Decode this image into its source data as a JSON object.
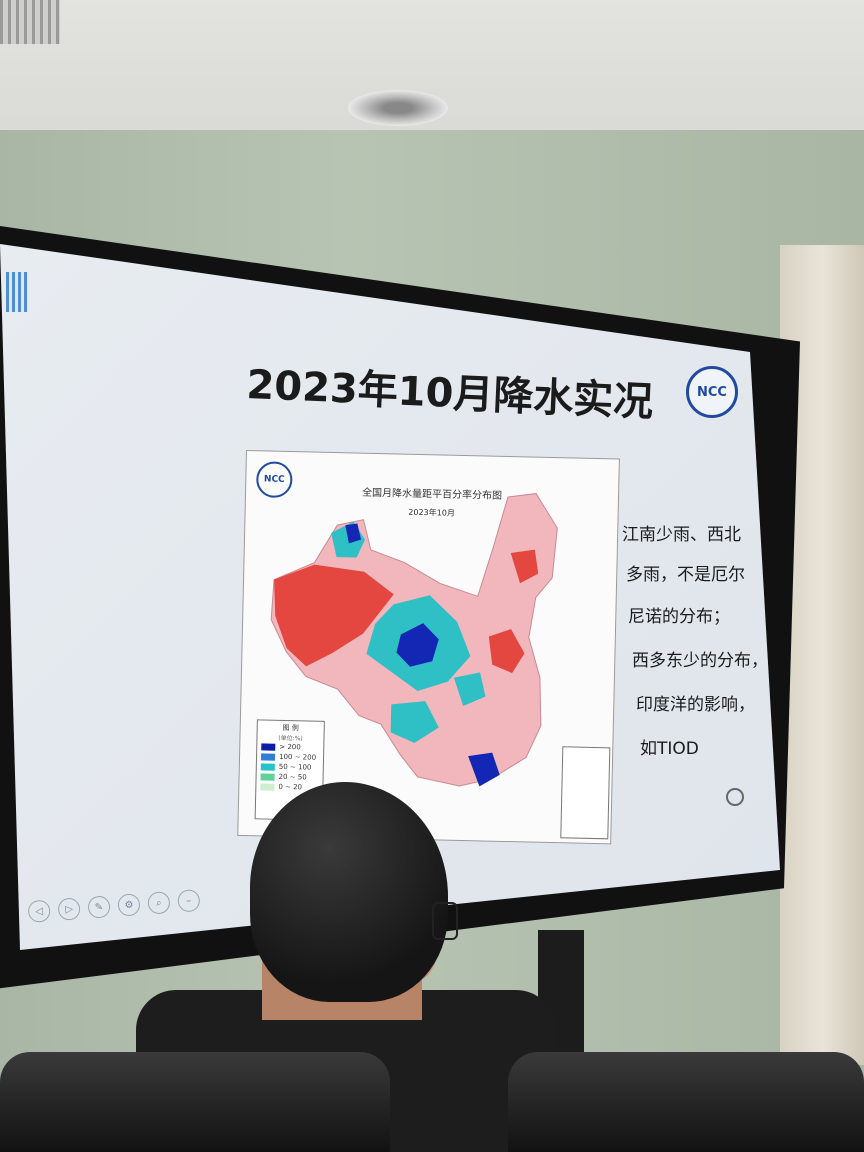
{
  "slide": {
    "title": "2023年10月降水实况",
    "logo_text": "NCC",
    "notes": [
      "江南少雨、西北",
      "多雨，不是厄尔",
      "尼诺的分布；",
      "西多东少的分布，",
      "印度洋的影响，",
      "如TIOD"
    ]
  },
  "map": {
    "logo_text": "NCC",
    "title": "全国月降水量距平百分率分布图",
    "date": "2023年10月",
    "legend": {
      "title": "图 例",
      "unit": "(单位:%)",
      "items": [
        {
          "label": "> 200",
          "color": "#0a1ea8"
        },
        {
          "label": "100 ~ 200",
          "color": "#2f7fd8"
        },
        {
          "label": "50 ~ 100",
          "color": "#25c2c9"
        },
        {
          "label": "20 ~ 50",
          "color": "#5fd49a"
        },
        {
          "label": "0 ~ 20",
          "color": "#cfeecf"
        }
      ]
    }
  },
  "colors": {
    "dry": "#e4473f",
    "slightly_dry": "#f2b6bd",
    "wet": "#2fc0c6",
    "very_wet": "#1326b4"
  }
}
